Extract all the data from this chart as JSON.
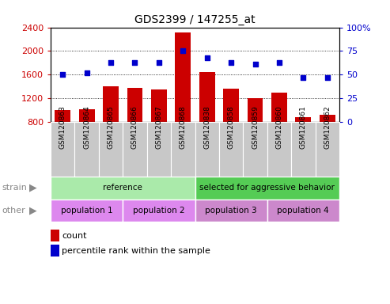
{
  "title": "GDS2399 / 147255_at",
  "samples": [
    "GSM120863",
    "GSM120864",
    "GSM120865",
    "GSM120866",
    "GSM120867",
    "GSM120868",
    "GSM120838",
    "GSM120858",
    "GSM120859",
    "GSM120860",
    "GSM120861",
    "GSM120862"
  ],
  "counts": [
    1000,
    1010,
    1400,
    1370,
    1350,
    2320,
    1640,
    1360,
    1200,
    1290,
    870,
    910
  ],
  "percentile_ranks": [
    50,
    52,
    63,
    63,
    63,
    75,
    68,
    63,
    61,
    63,
    47,
    47
  ],
  "ylim_left": [
    800,
    2400
  ],
  "ylim_right": [
    0,
    100
  ],
  "yticks_left": [
    800,
    1200,
    1600,
    2000,
    2400
  ],
  "yticks_right": [
    0,
    25,
    50,
    75,
    100
  ],
  "bar_color": "#cc0000",
  "dot_color": "#0000cc",
  "bg_color": "#ffffff",
  "plot_bg": "#ffffff",
  "xtick_box_color": "#c8c8c8",
  "strain_ref_color": "#aaeaaa",
  "strain_sel_color": "#55cc55",
  "other_color": "#dd88ee",
  "tick_label_color_left": "#cc0000",
  "tick_label_color_right": "#0000cc",
  "title_color": "#000000",
  "label_color": "#888888",
  "arrow_color": "#888888",
  "legend_count_color": "#cc0000",
  "legend_pct_color": "#0000cc",
  "strain_row": [
    {
      "label": "reference",
      "start": 0,
      "end": 6,
      "color": "#aaeaaa"
    },
    {
      "label": "selected for aggressive behavior",
      "start": 6,
      "end": 12,
      "color": "#55cc55"
    }
  ],
  "other_row": [
    {
      "label": "population 1",
      "start": 0,
      "end": 3,
      "color": "#dd88ee"
    },
    {
      "label": "population 2",
      "start": 3,
      "end": 6,
      "color": "#dd88ee"
    },
    {
      "label": "population 3",
      "start": 6,
      "end": 9,
      "color": "#cc88cc"
    },
    {
      "label": "population 4",
      "start": 9,
      "end": 12,
      "color": "#cc88cc"
    }
  ]
}
